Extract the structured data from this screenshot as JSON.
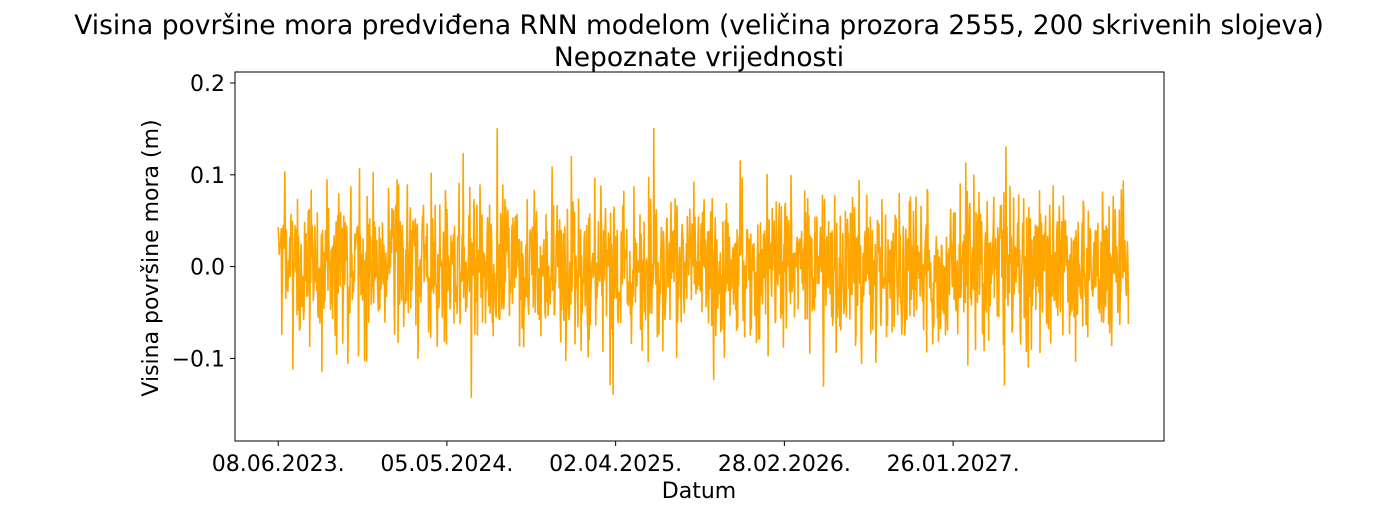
{
  "chart_data": {
    "type": "line",
    "title": "Visina površine mora predviđena RNN modelom (veličina prozora 2555, 200 skrivenih slojeva)",
    "subtitle": "Nepoznate vrijednosti",
    "xlabel": "Datum",
    "ylabel": "Visina površine mora (m)",
    "x_start": "08.06.2023.",
    "x_end": "10.04.2028.",
    "x_tick_labels": [
      "08.06.2023.",
      "05.05.2024.",
      "02.04.2025.",
      "28.02.2026.",
      "26.01.2027."
    ],
    "x_tick_days": [
      0,
      332,
      664,
      996,
      1328
    ],
    "xlim_days": [
      -85,
      1743
    ],
    "y_ticks": [
      -0.1,
      0.0,
      0.1,
      0.2
    ],
    "y_tick_labels": [
      "−0.1",
      "0.0",
      "0.1",
      "0.2"
    ],
    "ylim": [
      -0.19,
      0.212
    ],
    "grid": false,
    "legend": "none",
    "series": [
      {
        "color": "#ffa500",
        "n_points": 1674,
        "ymin": -0.172,
        "ymax": 0.193
      }
    ]
  }
}
